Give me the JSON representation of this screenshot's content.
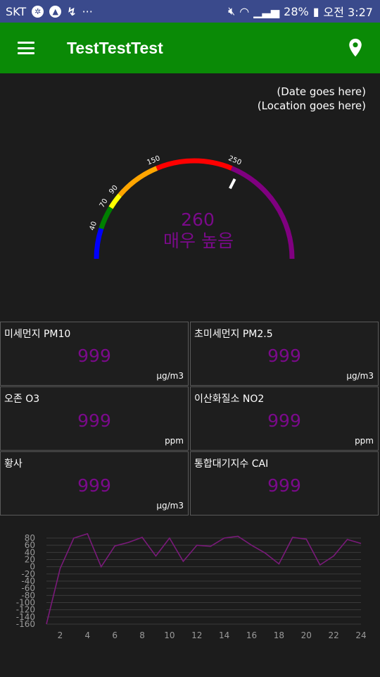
{
  "status_bar": {
    "carrier": "SKT",
    "battery": "28%",
    "time": "오전 3:27"
  },
  "app_bar": {
    "title": "TestTestTest",
    "menu_icon": "menu-icon",
    "location_icon": "location-pin-icon"
  },
  "info": {
    "date": "(Date goes here)",
    "location": "(Location goes here)"
  },
  "gauge": {
    "value": "260",
    "status": "매우 높음",
    "value_color": "#7a0a8a",
    "min": 0,
    "max": 400,
    "needle_value": 260,
    "ticks": [
      "40",
      "70",
      "90",
      "150",
      "250"
    ],
    "segments": [
      {
        "from": 0,
        "to": 40,
        "color": "#0000ff"
      },
      {
        "from": 40,
        "to": 70,
        "color": "#008000"
      },
      {
        "from": 70,
        "to": 90,
        "color": "#ffff00"
      },
      {
        "from": 90,
        "to": 150,
        "color": "#ffa500"
      },
      {
        "from": 150,
        "to": 250,
        "color": "#ff0000"
      },
      {
        "from": 250,
        "to": 400,
        "color": "#800080"
      }
    ]
  },
  "metrics": [
    {
      "label": "미세먼지 PM10",
      "value": "999",
      "unit": "μg/m3"
    },
    {
      "label": "초미세먼지 PM2.5",
      "value": "999",
      "unit": "μg/m3"
    },
    {
      "label": "오존 O3",
      "value": "999",
      "unit": "ppm"
    },
    {
      "label": "이산화질소 NO2",
      "value": "999",
      "unit": "ppm"
    },
    {
      "label": "황사",
      "value": "999",
      "unit": "μg/m3"
    },
    {
      "label": "통합대기지수 CAI",
      "value": "999",
      "unit": ""
    }
  ],
  "chart_data": {
    "type": "line",
    "x": [
      1,
      2,
      3,
      4,
      5,
      6,
      7,
      8,
      9,
      10,
      11,
      12,
      13,
      14,
      15,
      16,
      17,
      18,
      19,
      20,
      21,
      22,
      23,
      24
    ],
    "y": [
      -160,
      -5,
      80,
      92,
      0,
      58,
      68,
      82,
      30,
      80,
      15,
      60,
      57,
      80,
      85,
      60,
      38,
      8,
      82,
      77,
      5,
      30,
      76,
      65
    ],
    "ylim": [
      -160,
      80
    ],
    "yticks": [
      80,
      60,
      40,
      20,
      0,
      -20,
      -40,
      -60,
      -80,
      -100,
      -120,
      -140,
      -160
    ],
    "xticks": [
      2,
      4,
      6,
      8,
      10,
      12,
      14,
      16,
      18,
      20,
      22,
      24
    ],
    "xlim": [
      1,
      24
    ],
    "line_color": "#7a1a7a",
    "grid": true
  }
}
